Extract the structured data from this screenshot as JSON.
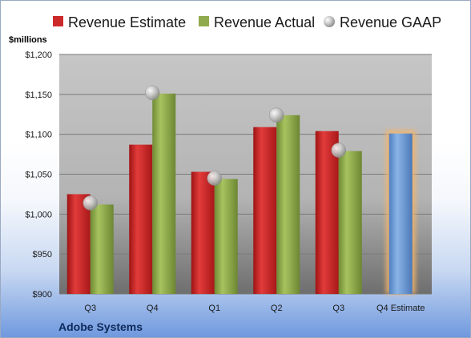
{
  "chart_data": {
    "type": "bar",
    "title": "",
    "company": "Adobe Systems",
    "unit_label": "$millions",
    "categories": [
      "Q3",
      "Q4",
      "Q1",
      "Q2",
      "Q3",
      "Q4 Estimate"
    ],
    "series": [
      {
        "name": "Revenue Estimate",
        "color": "#cc2a2a",
        "values": [
          1025,
          1087,
          1053,
          1109,
          1104,
          null
        ]
      },
      {
        "name": "Revenue Actual",
        "color": "#8fab4d",
        "values": [
          1012,
          1151,
          1044,
          1124,
          1079,
          null
        ]
      },
      {
        "name": "Revenue GAAP",
        "color": "#b8b8b8",
        "marker": "circle",
        "values": [
          1014,
          1152,
          1045,
          1124,
          1080,
          null
        ]
      }
    ],
    "estimate_bar": {
      "category": "Q4 Estimate",
      "value": 1101,
      "color": "#6f9fd8",
      "glow": "#f5b46a"
    },
    "y_ticks": [
      "$900",
      "$950",
      "$1,000",
      "$1,050",
      "$1,100",
      "$1,150",
      "$1,200"
    ],
    "ylim": [
      900,
      1200
    ],
    "grid": true,
    "legend_position": "top"
  }
}
